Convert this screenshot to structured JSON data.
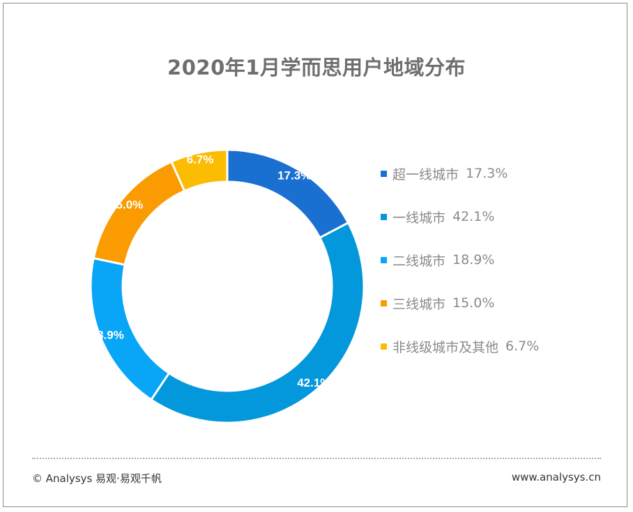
{
  "chart_data": {
    "type": "pie",
    "title": "2020年1月学而思用户地域分布",
    "series": [
      {
        "name": "超一线城市",
        "value": 17.3,
        "label": "17.3%",
        "color": "#1a70d0"
      },
      {
        "name": "一线城市",
        "value": 42.1,
        "label": "42.1%",
        "color": "#0398dc"
      },
      {
        "name": "二线城市",
        "value": 18.9,
        "label": "18.9%",
        "color": "#09a6f7"
      },
      {
        "name": "三线城市",
        "value": 15.0,
        "label": "15.0%",
        "color": "#fb9b02"
      },
      {
        "name": "非线级城市及其他",
        "value": 6.7,
        "label": "6.7%",
        "color": "#fcbc02"
      }
    ],
    "legend_position": "right"
  },
  "footer": {
    "left": "© Analysys 易观·易观千帆",
    "right": "www.analysys.cn"
  }
}
